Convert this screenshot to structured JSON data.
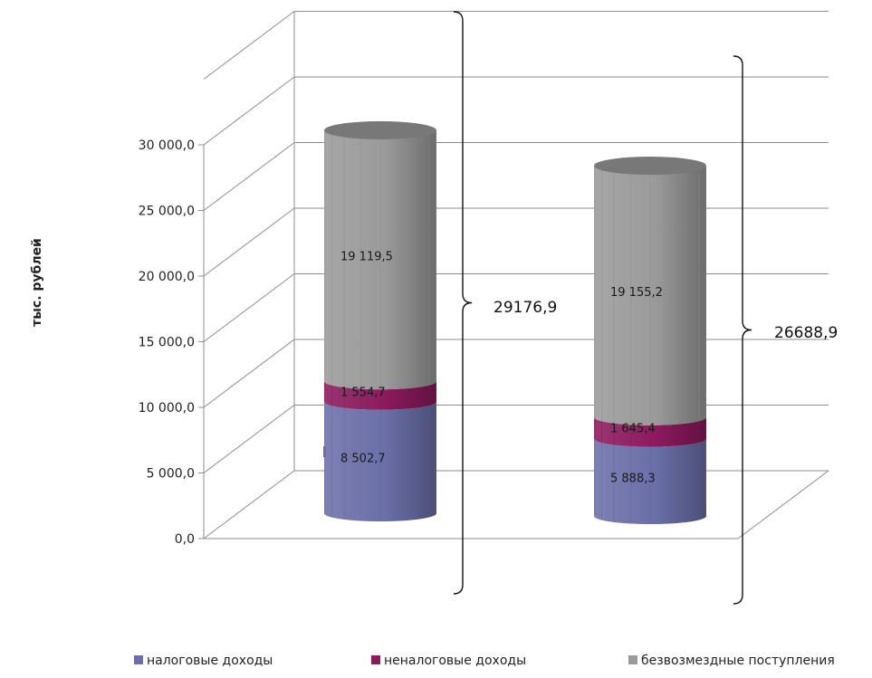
{
  "chart_data": {
    "type": "bar",
    "stacked": true,
    "ylabel": "тыс. рублей",
    "ylim": [
      0,
      30000
    ],
    "yticks": [
      {
        "value": 0,
        "label": "0,0"
      },
      {
        "value": 5000,
        "label": "5 000,0"
      },
      {
        "value": 10000,
        "label": "10 000,0"
      },
      {
        "value": 15000,
        "label": "15 000,0"
      },
      {
        "value": 20000,
        "label": "20 000,0"
      },
      {
        "value": 25000,
        "label": "25 000,0"
      },
      {
        "value": 30000,
        "label": "30 000,0"
      }
    ],
    "grid": true,
    "legend_position": "bottom",
    "series": [
      {
        "name": "налоговые доходы",
        "color": "#6b6fa8",
        "values": [
          8502.7,
          5888.3
        ],
        "labels": [
          "8 502,7",
          "5 888,3"
        ]
      },
      {
        "name": "неналоговые доходы",
        "color": "#8c1a5e",
        "values": [
          1554.7,
          1645.4
        ],
        "labels": [
          "1 554,7",
          "1 645,4"
        ]
      },
      {
        "name": "безвозмездные поступления",
        "color": "#9a9a9a",
        "values": [
          19119.5,
          19155.2
        ],
        "labels": [
          "19 119,5",
          "19 155,2"
        ]
      }
    ],
    "totals": [
      "29176,9",
      "26688,9"
    ]
  }
}
